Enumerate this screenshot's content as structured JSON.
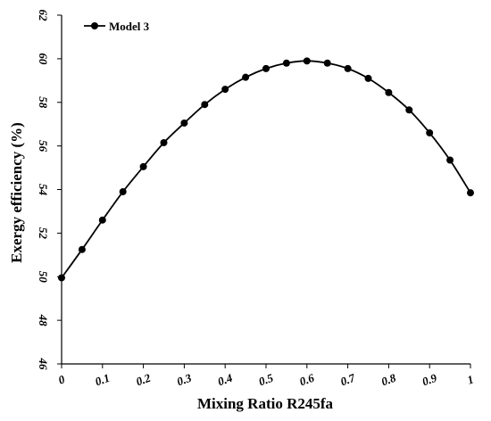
{
  "chart_data": {
    "type": "line",
    "xlabel": "Mixing Ratio R245fa",
    "ylabel": "Exergy efficiency (%)",
    "xlim": [
      0,
      1
    ],
    "ylim": [
      46,
      62
    ],
    "x_ticks": [
      0,
      0.1,
      0.2,
      0.3,
      0.4,
      0.5,
      0.6,
      0.7,
      0.8,
      0.9,
      1
    ],
    "x_tick_labels": [
      "0",
      "0.1",
      "0.2",
      "0.3",
      "0.4",
      "0.5",
      "0.6",
      "0.7",
      "0.8",
      "0.9",
      "1"
    ],
    "y_ticks": [
      46,
      48,
      50,
      52,
      54,
      56,
      58,
      60,
      62
    ],
    "y_tick_labels": [
      "46",
      "48",
      "50",
      "52",
      "54",
      "56",
      "58",
      "60",
      "62"
    ],
    "grid": false,
    "legend_position": "top-left",
    "series": [
      {
        "name": "Model 3",
        "color": "#000000",
        "marker": "circle",
        "x": [
          0,
          0.05,
          0.1,
          0.15,
          0.2,
          0.25,
          0.3,
          0.35,
          0.4,
          0.45,
          0.5,
          0.55,
          0.6,
          0.65,
          0.7,
          0.75,
          0.8,
          0.85,
          0.9,
          0.95,
          1
        ],
        "values": [
          49.95,
          51.25,
          52.6,
          53.9,
          55.05,
          56.15,
          57.05,
          57.9,
          58.6,
          59.15,
          59.55,
          59.8,
          59.9,
          59.8,
          59.55,
          59.1,
          58.45,
          57.65,
          56.6,
          55.35,
          53.85
        ]
      }
    ]
  }
}
